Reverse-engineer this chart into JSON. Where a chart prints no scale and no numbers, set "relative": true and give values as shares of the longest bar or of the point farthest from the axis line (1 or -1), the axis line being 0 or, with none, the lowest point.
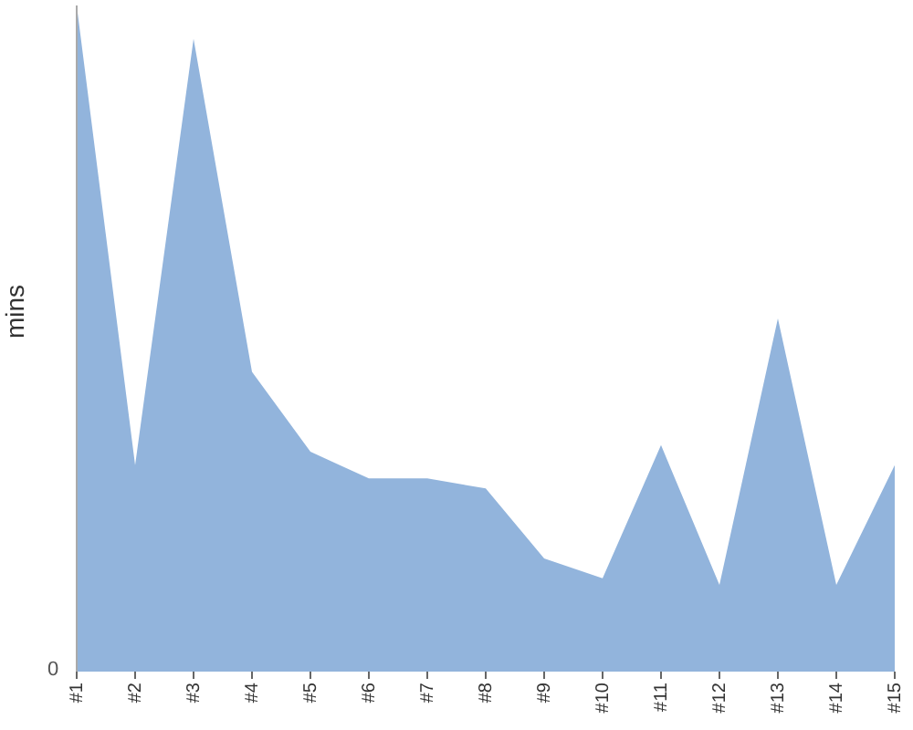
{
  "chart_data": {
    "type": "area",
    "ylabel": "mins",
    "relative": true,
    "annotations": [
      "0"
    ],
    "color": "#92b4dc",
    "categories": [
      "#1",
      "#2",
      "#3",
      "#4",
      "#5",
      "#6",
      "#7",
      "#8",
      "#9",
      "#10",
      "#11",
      "#12",
      "#13",
      "#14",
      "#15"
    ],
    "values": [
      1,
      0.31,
      0.95,
      0.45,
      0.33,
      0.29,
      0.29,
      0.275,
      0.17,
      0.14,
      0.34,
      0.13,
      0.53,
      0.13,
      0.31
    ],
    "legend": false
  }
}
